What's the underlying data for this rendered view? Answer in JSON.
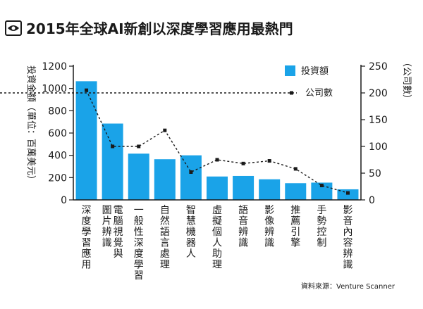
{
  "header": {
    "title": "2015年全球AI新創以深度學習應用最熱門",
    "logo_icon": "eye-icon"
  },
  "source": "資料來源：Venture Scanner",
  "chart_data": {
    "type": "bar+line",
    "title": "2015年全球AI新創以深度學習應用最熱門",
    "categories": [
      "深度學習應用",
      "電腦視覺與圖片辨識",
      "一般性深度學習",
      "自然語言處理",
      "智慧機器人",
      "虛擬個人助理",
      "語音辨識",
      "影像辨識",
      "推薦引擎",
      "手勢控制",
      "影音內容辨識"
    ],
    "ylabel_left": "投資金額（單位：百萬美元）",
    "ylabel_right": "（公司數）",
    "ylim_left": [
      0,
      1200
    ],
    "ylim_right": [
      0,
      250
    ],
    "yticks_left": [
      0,
      200,
      400,
      600,
      800,
      1000,
      1200
    ],
    "yticks_right": [
      0,
      50,
      100,
      150,
      200,
      250
    ],
    "legend_position": "top-right",
    "series": [
      {
        "name": "投資額",
        "type": "bar",
        "axis": "left",
        "color": "#1aa3e8",
        "values": [
          1065,
          685,
          415,
          365,
          400,
          210,
          215,
          185,
          150,
          155,
          95
        ]
      },
      {
        "name": "公司數",
        "type": "line",
        "axis": "right",
        "color": "#1a1a1a",
        "dash": true,
        "values": [
          205,
          100,
          100,
          130,
          52,
          75,
          68,
          73,
          58,
          27,
          13
        ]
      }
    ]
  }
}
